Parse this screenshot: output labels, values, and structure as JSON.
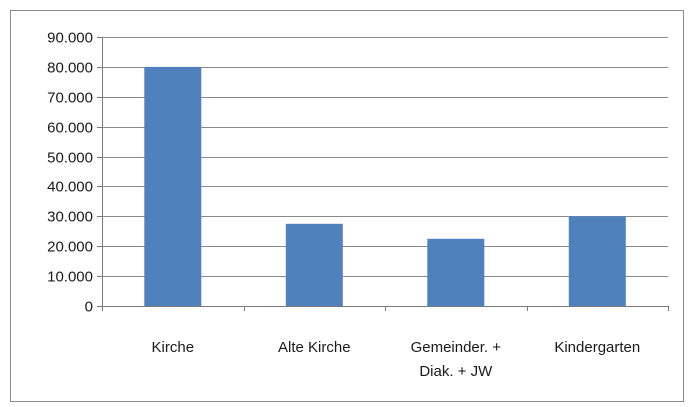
{
  "chart_data": {
    "type": "bar",
    "title": "",
    "xlabel": "",
    "ylabel": "",
    "categories": [
      [
        "Kirche"
      ],
      [
        "Alte Kirche"
      ],
      [
        "Gemeinder. +",
        "Diak. + JW"
      ],
      [
        "Kindergarten"
      ]
    ],
    "values": [
      80000,
      27500,
      22500,
      30000
    ],
    "ylim": [
      0,
      90000
    ],
    "y_ticks": [
      {
        "value": 0,
        "label": "0"
      },
      {
        "value": 10000,
        "label": "10.000"
      },
      {
        "value": 20000,
        "label": "20.000"
      },
      {
        "value": 30000,
        "label": "30.000"
      },
      {
        "value": 40000,
        "label": "40.000"
      },
      {
        "value": 50000,
        "label": "50.000"
      },
      {
        "value": 60000,
        "label": "60.000"
      },
      {
        "value": 70000,
        "label": "70.000"
      },
      {
        "value": 80000,
        "label": "80.000"
      },
      {
        "value": 90000,
        "label": "90.000"
      }
    ],
    "grid": true,
    "legend": "none",
    "bar_color": "#4f81bd"
  }
}
